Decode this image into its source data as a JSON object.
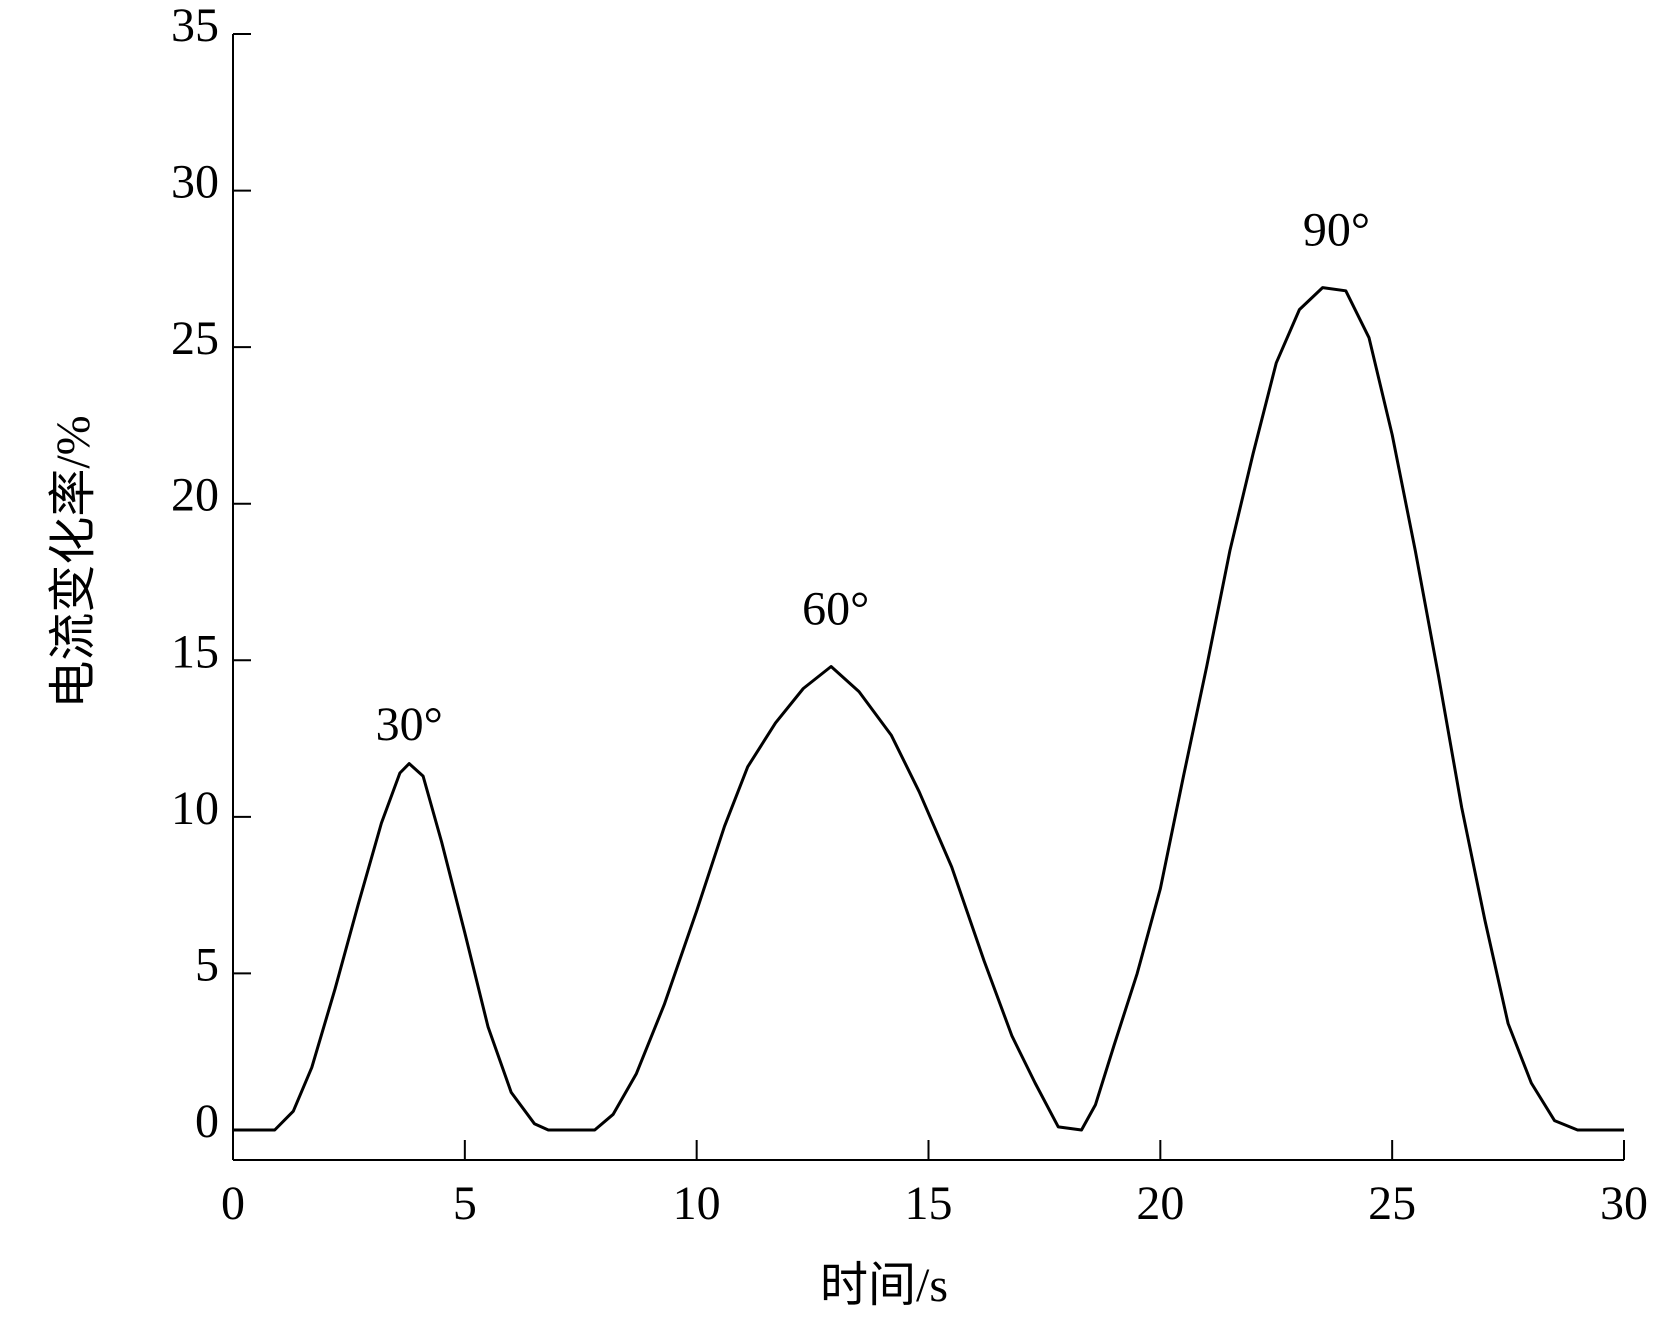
{
  "chart_data": {
    "type": "line",
    "xlabel": "时间/s",
    "ylabel": "电流变化率/%",
    "x": [
      0,
      0.9,
      1.3,
      1.7,
      2.2,
      2.7,
      3.2,
      3.6,
      3.8,
      4.1,
      4.5,
      5,
      5.5,
      6,
      6.5,
      6.8,
      7.8,
      8.2,
      8.7,
      9.3,
      10,
      10.6,
      11.1,
      11.7,
      12.3,
      12.9,
      13.5,
      14.2,
      14.8,
      15.5,
      16.2,
      16.8,
      17.3,
      17.8,
      18.3,
      18.6,
      19,
      19.5,
      20,
      20.5,
      21,
      21.5,
      22,
      22.5,
      23,
      23.5,
      24,
      24.5,
      25,
      25.5,
      26,
      26.5,
      27,
      27.5,
      28,
      28.5,
      29,
      30
    ],
    "values": [
      0,
      0,
      0.6,
      2,
      4.5,
      7.2,
      9.8,
      11.4,
      11.7,
      11.3,
      9.2,
      6.3,
      3.3,
      1.2,
      0.2,
      0,
      0,
      0.5,
      1.8,
      4,
      7,
      9.7,
      11.6,
      13,
      14.1,
      14.8,
      14,
      12.6,
      10.8,
      8.4,
      5.4,
      3,
      1.5,
      0.1,
      0,
      0.8,
      2.7,
      5,
      7.7,
      11.3,
      14.8,
      18.5,
      21.6,
      24.5,
      26.2,
      26.9,
      26.8,
      25.3,
      22.2,
      18.5,
      14.5,
      10.3,
      6.7,
      3.4,
      1.5,
      0.3,
      0,
      0
    ],
    "color": "#000000",
    "xlim": [
      0,
      30
    ],
    "xticks": [
      0,
      5,
      10,
      15,
      20,
      25,
      30
    ],
    "ylim": [
      0,
      35
    ],
    "yticks": [
      0,
      5,
      10,
      15,
      20,
      25,
      30,
      35
    ],
    "annotations": [
      {
        "text": "30°",
        "x": 3.8,
        "y": 12.8
      },
      {
        "text": "60°",
        "x": 13,
        "y": 16.5
      },
      {
        "text": "90°",
        "x": 23.8,
        "y": 28.6
      }
    ]
  }
}
